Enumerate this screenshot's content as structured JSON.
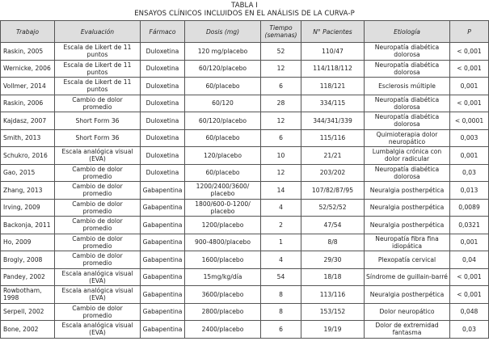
{
  "caption": {
    "label": "TABLA I",
    "title": "ENSAYOS CLÍNICOS INCLUIDOS EN EL ANÁLISIS DE LA CURVA-P"
  },
  "headers": [
    "Trabajo",
    "Evaluación",
    "Fármaco",
    "Dosis (mg)",
    "Tiempo (semanas)",
    "N° Pacientes",
    "Etiología",
    "P"
  ],
  "rows": [
    [
      "Raskin, 2005",
      "Escala de Likert de 11 puntos",
      "Duloxetina",
      "120 mg/placebo",
      "52",
      "110/47",
      "Neuropatía diabética dolorosa",
      "< 0,001"
    ],
    [
      "Wernicke, 2006",
      "Escala de Likert de 11 puntos",
      "Duloxetina",
      "60/120/placebo",
      "12",
      "114/118/112",
      "Neuropatía diabética dolorosa",
      "< 0,001"
    ],
    [
      "Vollmer, 2014",
      "Escala de Likert de 11 puntos",
      "Duloxetina",
      "60/placebo",
      "6",
      "118/121",
      "Esclerosis múltiple",
      "0,001"
    ],
    [
      "Raskin, 2006",
      "Cambio de dolor promedio",
      "Duloxetina",
      "60/120",
      "28",
      "334/115",
      "Neuropatía diabética dolorosa",
      "< 0,001"
    ],
    [
      "Kajdasz, 2007",
      "Short Form 36",
      "Duloxetina",
      "60/120/placebo",
      "12",
      "344/341/339",
      "Neuropatía diabética dolorosa",
      "< 0,0001"
    ],
    [
      "Smith, 2013",
      "Short Form 36",
      "Duloxetina",
      "60/placebo",
      "6",
      "115/116",
      "Quimioterapia dolor neuropático",
      "0,003"
    ],
    [
      "Schukro, 2016",
      "Escala analógica visual (EVA)",
      "Duloxetina",
      "120/placebo",
      "10",
      "21/21",
      "Lumbalgia crónica con dolor radicular",
      "0,001"
    ],
    [
      "Gao, 2015",
      "Cambio de dolor promedio",
      "Duloxetina",
      "60/placebo",
      "12",
      "203/202",
      "Neuropatía diabética dolorosa",
      "0,03"
    ],
    [
      "Zhang, 2013",
      "Cambio de dolor promedio",
      "Gabapentina",
      "1200/2400/3600/ placebo",
      "14",
      "107/82/87/95",
      "Neuralgia postherpética",
      "0,013"
    ],
    [
      "Irving, 2009",
      "Cambio de dolor promedio",
      "Gabapentina",
      "1800/600-0-1200/ placebo",
      "4",
      "52/52/52",
      "Neuralgia postherpética",
      "0,0089"
    ],
    [
      "Backonja, 2011",
      "Cambio de dolor promedio",
      "Gabapentina",
      "1200/placebo",
      "2",
      "47/54",
      "Neuralgia postherpética",
      "0,0321"
    ],
    [
      "Ho, 2009",
      "Cambio de dolor promedio",
      "Gabapentina",
      "900-4800/placebo",
      "1",
      "8/8",
      "Neuropatía fibra fina idiopática",
      "0,001"
    ],
    [
      "Brogly, 2008",
      "Cambio de dolor promedio",
      "Gabapentina",
      "1600/placebo",
      "4",
      "29/30",
      "Plexopatía cervical",
      "0,04"
    ],
    [
      "Pandey, 2002",
      "Escala analógica visual (EVA)",
      "Gabapentina",
      "15mg/kg/día",
      "54",
      "18/18",
      "Síndrome de guillain-barré",
      "< 0,001"
    ],
    [
      "Rowbotham, 1998",
      "Escala analógica visual (EVA)",
      "Gabapentina",
      "3600/placebo",
      "8",
      "113/116",
      "Neuralgia postherpética",
      "< 0,001"
    ],
    [
      "Serpell, 2002",
      "Cambio de dolor promedio",
      "Gabapentina",
      "2800/placebo",
      "8",
      "153/152",
      "Dolor neuropático",
      "0,048"
    ],
    [
      "Bone, 2002",
      "Escala analógica visual (EVA)",
      "Gabapentina",
      "2400/placebo",
      "6",
      "19/19",
      "Dolor de extremidad fantasma",
      "0,03"
    ]
  ]
}
